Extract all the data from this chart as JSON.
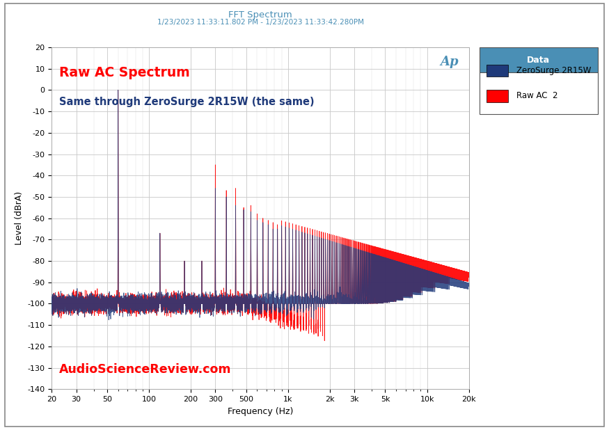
{
  "title": "FFT Spectrum",
  "subtitle": "1/23/2023 11:33:11.802 PM - 1/23/2023 11:33:42.280PM",
  "xlabel": "Frequency (Hz)",
  "ylabel": "Level (dBrA)",
  "annotation_red": "Raw AC Spectrum",
  "annotation_blue": "Same through ZeroSurge 2R15W (the same)",
  "watermark": "AudioScienceReview.com",
  "legend_title": "Data",
  "legend_entries": [
    "ZeroSurge 2R15W",
    "Raw AC  2"
  ],
  "color_blue": "#1F3A7A",
  "color_red": "#ff0000",
  "color_legend_header": "#4a8fb5",
  "xmin": 20,
  "xmax": 20000,
  "ymin": -140,
  "ymax": 20,
  "background_color": "#ffffff",
  "grid_color": "#c8c8c8",
  "title_color": "#4a8fb5",
  "subtitle_color": "#4a8fb5"
}
